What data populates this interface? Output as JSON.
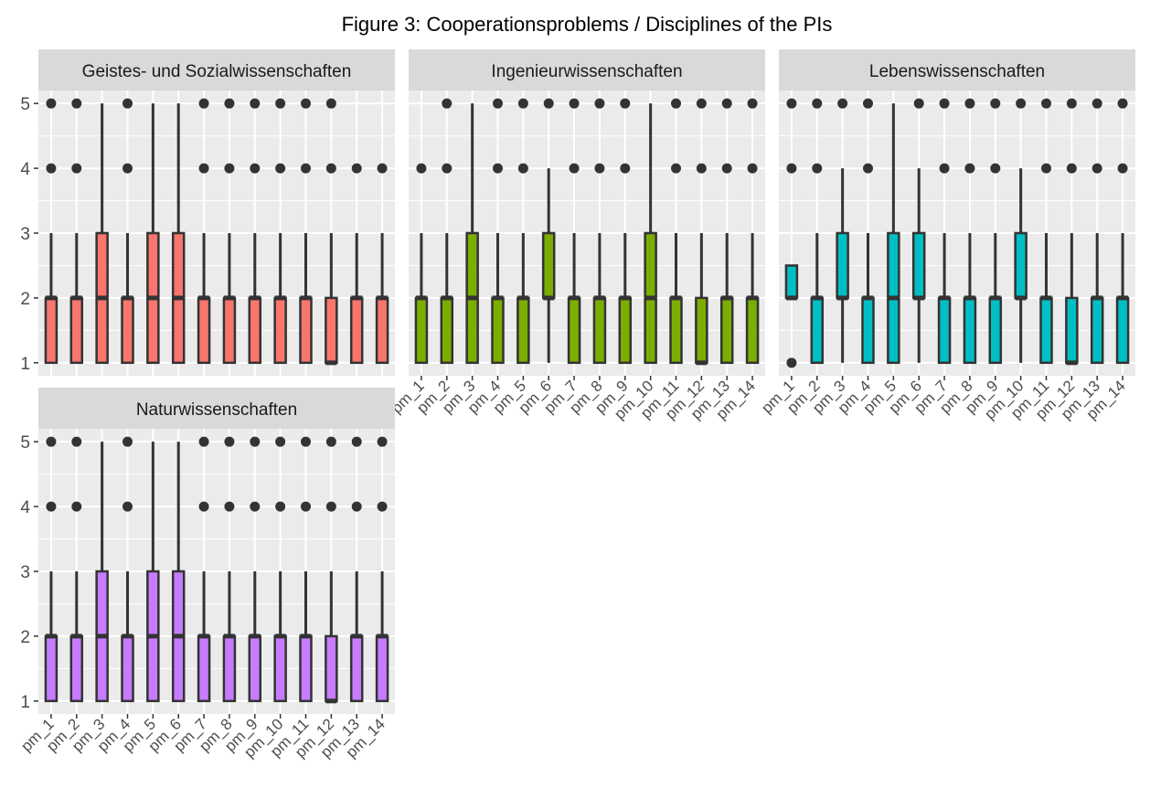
{
  "chart_data": {
    "type": "boxplot",
    "title": "Figure 3: Cooperationsproblems / Disciplines of the PIs",
    "xlabel": "",
    "ylabel": "",
    "ylim": [
      1,
      5
    ],
    "y_ticks": [
      1,
      2,
      3,
      4,
      5
    ],
    "categories": [
      "pm_1",
      "pm_2",
      "pm_3",
      "pm_4",
      "pm_5",
      "pm_6",
      "pm_7",
      "pm_8",
      "pm_9",
      "pm_10",
      "pm_11",
      "pm_12",
      "pm_13",
      "pm_14"
    ],
    "panels": [
      {
        "name": "Geistes- und Sozialwissenschaften",
        "color": "#F8766D",
        "boxes": [
          {
            "q1": 1,
            "median": 2,
            "q3": 2,
            "wlo": 1,
            "whi": 3,
            "outliers": [
              4,
              5
            ]
          },
          {
            "q1": 1,
            "median": 2,
            "q3": 2,
            "wlo": 1,
            "whi": 3,
            "outliers": [
              4,
              5
            ]
          },
          {
            "q1": 1,
            "median": 2,
            "q3": 3,
            "wlo": 1,
            "whi": 5,
            "outliers": []
          },
          {
            "q1": 1,
            "median": 2,
            "q3": 2,
            "wlo": 1,
            "whi": 3,
            "outliers": [
              4,
              5
            ]
          },
          {
            "q1": 1,
            "median": 2,
            "q3": 3,
            "wlo": 1,
            "whi": 5,
            "outliers": []
          },
          {
            "q1": 1,
            "median": 2,
            "q3": 3,
            "wlo": 1,
            "whi": 5,
            "outliers": []
          },
          {
            "q1": 1,
            "median": 2,
            "q3": 2,
            "wlo": 1,
            "whi": 3,
            "outliers": [
              4,
              5
            ]
          },
          {
            "q1": 1,
            "median": 2,
            "q3": 2,
            "wlo": 1,
            "whi": 3,
            "outliers": [
              4,
              5
            ]
          },
          {
            "q1": 1,
            "median": 2,
            "q3": 2,
            "wlo": 1,
            "whi": 3,
            "outliers": [
              4,
              5
            ]
          },
          {
            "q1": 1,
            "median": 2,
            "q3": 2,
            "wlo": 1,
            "whi": 3,
            "outliers": [
              4,
              5
            ]
          },
          {
            "q1": 1,
            "median": 2,
            "q3": 2,
            "wlo": 1,
            "whi": 3,
            "outliers": [
              4,
              5
            ]
          },
          {
            "q1": 1,
            "median": 1,
            "q3": 2,
            "wlo": 1,
            "whi": 3,
            "outliers": [
              4,
              5
            ]
          },
          {
            "q1": 1,
            "median": 2,
            "q3": 2,
            "wlo": 1,
            "whi": 3,
            "outliers": [
              4
            ]
          },
          {
            "q1": 1,
            "median": 2,
            "q3": 2,
            "wlo": 1,
            "whi": 3,
            "outliers": [
              4
            ]
          }
        ]
      },
      {
        "name": "Ingenieurwissenschaften",
        "color": "#7CAE00",
        "boxes": [
          {
            "q1": 1,
            "median": 2,
            "q3": 2,
            "wlo": 1,
            "whi": 3,
            "outliers": [
              4
            ]
          },
          {
            "q1": 1,
            "median": 2,
            "q3": 2,
            "wlo": 1,
            "whi": 3,
            "outliers": [
              4,
              5
            ]
          },
          {
            "q1": 1,
            "median": 2,
            "q3": 3,
            "wlo": 1,
            "whi": 5,
            "outliers": []
          },
          {
            "q1": 1,
            "median": 2,
            "q3": 2,
            "wlo": 1,
            "whi": 3,
            "outliers": [
              4,
              5
            ]
          },
          {
            "q1": 1,
            "median": 2,
            "q3": 2,
            "wlo": 1,
            "whi": 3,
            "outliers": [
              4,
              5
            ]
          },
          {
            "q1": 2,
            "median": 2,
            "q3": 3,
            "wlo": 1,
            "whi": 4,
            "outliers": [
              5
            ]
          },
          {
            "q1": 1,
            "median": 2,
            "q3": 2,
            "wlo": 1,
            "whi": 3,
            "outliers": [
              4,
              5
            ]
          },
          {
            "q1": 1,
            "median": 2,
            "q3": 2,
            "wlo": 1,
            "whi": 3,
            "outliers": [
              4,
              5
            ]
          },
          {
            "q1": 1,
            "median": 2,
            "q3": 2,
            "wlo": 1,
            "whi": 3,
            "outliers": [
              4,
              5
            ]
          },
          {
            "q1": 1,
            "median": 2,
            "q3": 3,
            "wlo": 1,
            "whi": 5,
            "outliers": []
          },
          {
            "q1": 1,
            "median": 2,
            "q3": 2,
            "wlo": 1,
            "whi": 3,
            "outliers": [
              4,
              5
            ]
          },
          {
            "q1": 1,
            "median": 1,
            "q3": 2,
            "wlo": 1,
            "whi": 3,
            "outliers": [
              4,
              5
            ]
          },
          {
            "q1": 1,
            "median": 2,
            "q3": 2,
            "wlo": 1,
            "whi": 3,
            "outliers": [
              4,
              5
            ]
          },
          {
            "q1": 1,
            "median": 2,
            "q3": 2,
            "wlo": 1,
            "whi": 3,
            "outliers": [
              4,
              5
            ]
          }
        ]
      },
      {
        "name": "Lebenswissenschaften",
        "color": "#00BFC4",
        "boxes": [
          {
            "q1": 2,
            "median": 2,
            "q3": 2.5,
            "wlo": 2,
            "whi": 2.5,
            "outliers": [
              1,
              4,
              5
            ]
          },
          {
            "q1": 1,
            "median": 2,
            "q3": 2,
            "wlo": 1,
            "whi": 3,
            "outliers": [
              4,
              5
            ]
          },
          {
            "q1": 2,
            "median": 2,
            "q3": 3,
            "wlo": 1,
            "whi": 4,
            "outliers": [
              5
            ]
          },
          {
            "q1": 1,
            "median": 2,
            "q3": 2,
            "wlo": 1,
            "whi": 3,
            "outliers": [
              4,
              5
            ]
          },
          {
            "q1": 1,
            "median": 2,
            "q3": 3,
            "wlo": 1,
            "whi": 5,
            "outliers": []
          },
          {
            "q1": 2,
            "median": 2,
            "q3": 3,
            "wlo": 1,
            "whi": 4,
            "outliers": [
              5
            ]
          },
          {
            "q1": 1,
            "median": 2,
            "q3": 2,
            "wlo": 1,
            "whi": 3,
            "outliers": [
              4,
              5
            ]
          },
          {
            "q1": 1,
            "median": 2,
            "q3": 2,
            "wlo": 1,
            "whi": 3,
            "outliers": [
              4,
              5
            ]
          },
          {
            "q1": 1,
            "median": 2,
            "q3": 2,
            "wlo": 1,
            "whi": 3,
            "outliers": [
              4,
              5
            ]
          },
          {
            "q1": 2,
            "median": 2,
            "q3": 3,
            "wlo": 1,
            "whi": 4,
            "outliers": [
              5
            ]
          },
          {
            "q1": 1,
            "median": 2,
            "q3": 2,
            "wlo": 1,
            "whi": 3,
            "outliers": [
              4,
              5
            ]
          },
          {
            "q1": 1,
            "median": 1,
            "q3": 2,
            "wlo": 1,
            "whi": 3,
            "outliers": [
              4,
              5
            ]
          },
          {
            "q1": 1,
            "median": 2,
            "q3": 2,
            "wlo": 1,
            "whi": 3,
            "outliers": [
              4,
              5
            ]
          },
          {
            "q1": 1,
            "median": 2,
            "q3": 2,
            "wlo": 1,
            "whi": 3,
            "outliers": [
              4,
              5
            ]
          }
        ]
      },
      {
        "name": "Naturwissenschaften",
        "color": "#C77CFF",
        "boxes": [
          {
            "q1": 1,
            "median": 2,
            "q3": 2,
            "wlo": 1,
            "whi": 3,
            "outliers": [
              4,
              5
            ]
          },
          {
            "q1": 1,
            "median": 2,
            "q3": 2,
            "wlo": 1,
            "whi": 3,
            "outliers": [
              4,
              5
            ]
          },
          {
            "q1": 1,
            "median": 2,
            "q3": 3,
            "wlo": 1,
            "whi": 5,
            "outliers": []
          },
          {
            "q1": 1,
            "median": 2,
            "q3": 2,
            "wlo": 1,
            "whi": 3,
            "outliers": [
              4,
              5
            ]
          },
          {
            "q1": 1,
            "median": 2,
            "q3": 3,
            "wlo": 1,
            "whi": 5,
            "outliers": []
          },
          {
            "q1": 1,
            "median": 2,
            "q3": 3,
            "wlo": 1,
            "whi": 5,
            "outliers": []
          },
          {
            "q1": 1,
            "median": 2,
            "q3": 2,
            "wlo": 1,
            "whi": 3,
            "outliers": [
              4,
              5
            ]
          },
          {
            "q1": 1,
            "median": 2,
            "q3": 2,
            "wlo": 1,
            "whi": 3,
            "outliers": [
              4,
              5
            ]
          },
          {
            "q1": 1,
            "median": 2,
            "q3": 2,
            "wlo": 1,
            "whi": 3,
            "outliers": [
              4,
              5
            ]
          },
          {
            "q1": 1,
            "median": 2,
            "q3": 2,
            "wlo": 1,
            "whi": 3,
            "outliers": [
              4,
              5
            ]
          },
          {
            "q1": 1,
            "median": 2,
            "q3": 2,
            "wlo": 1,
            "whi": 3,
            "outliers": [
              4,
              5
            ]
          },
          {
            "q1": 1,
            "median": 1,
            "q3": 2,
            "wlo": 1,
            "whi": 3,
            "outliers": [
              4,
              5
            ]
          },
          {
            "q1": 1,
            "median": 2,
            "q3": 2,
            "wlo": 1,
            "whi": 3,
            "outliers": [
              4,
              5
            ]
          },
          {
            "q1": 1,
            "median": 2,
            "q3": 2,
            "wlo": 1,
            "whi": 3,
            "outliers": [
              4,
              5
            ]
          }
        ]
      }
    ]
  },
  "colors": {
    "panel_background": "#EBEBEB",
    "strip_background": "#D9D9D9",
    "grid": "#FFFFFF",
    "box_stroke": "#333333",
    "outlier": "#333333"
  }
}
